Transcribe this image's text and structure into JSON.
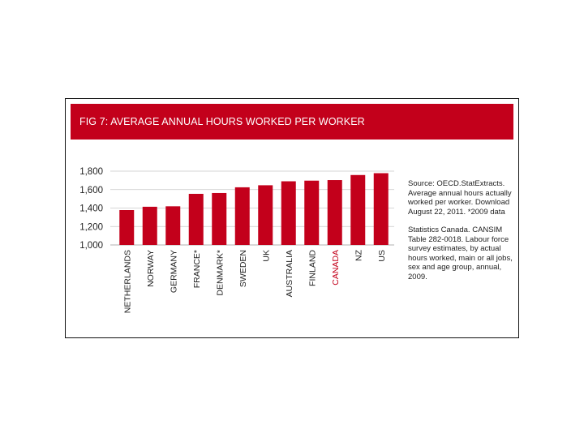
{
  "figure": {
    "title": "FIG 7:  AVERAGE ANNUAL HOURS WORKED PER WORKER",
    "accent_color": "#c3001b",
    "notes": [
      "Source:  OECD.StatExtracts. Average annual hours actually worked per worker. Download August 22, 2011. *2009 data",
      "Statistics Canada.  CANSIM Table 282-0018.  Labour force survey estimates, by actual hours worked, main or all jobs, sex and age group, annual, 2009."
    ]
  },
  "chart_data": {
    "type": "bar",
    "title": "FIG 7:  AVERAGE ANNUAL HOURS WORKED PER WORKER",
    "categories": [
      "NETHERLANDS",
      "NORWAY",
      "GERMANY",
      "FRANCE*",
      "DENMARK*",
      "SWEDEN",
      "UK",
      "AUSTRALIA",
      "FINLAND",
      "CANADA",
      "NZ",
      "US"
    ],
    "values": [
      1378,
      1414,
      1419,
      1554,
      1563,
      1625,
      1647,
      1690,
      1697,
      1703,
      1758,
      1778
    ],
    "highlight_category": "CANADA",
    "bar_color": "#c3001b",
    "ylim": [
      1000,
      1800
    ],
    "yticks": [
      1000,
      1200,
      1400,
      1600,
      1800
    ],
    "ytick_labels": [
      "1,000",
      "1,200",
      "1,400",
      "1,600",
      "1,800"
    ],
    "xlabel": "",
    "ylabel": "",
    "grid": "horizontal"
  }
}
